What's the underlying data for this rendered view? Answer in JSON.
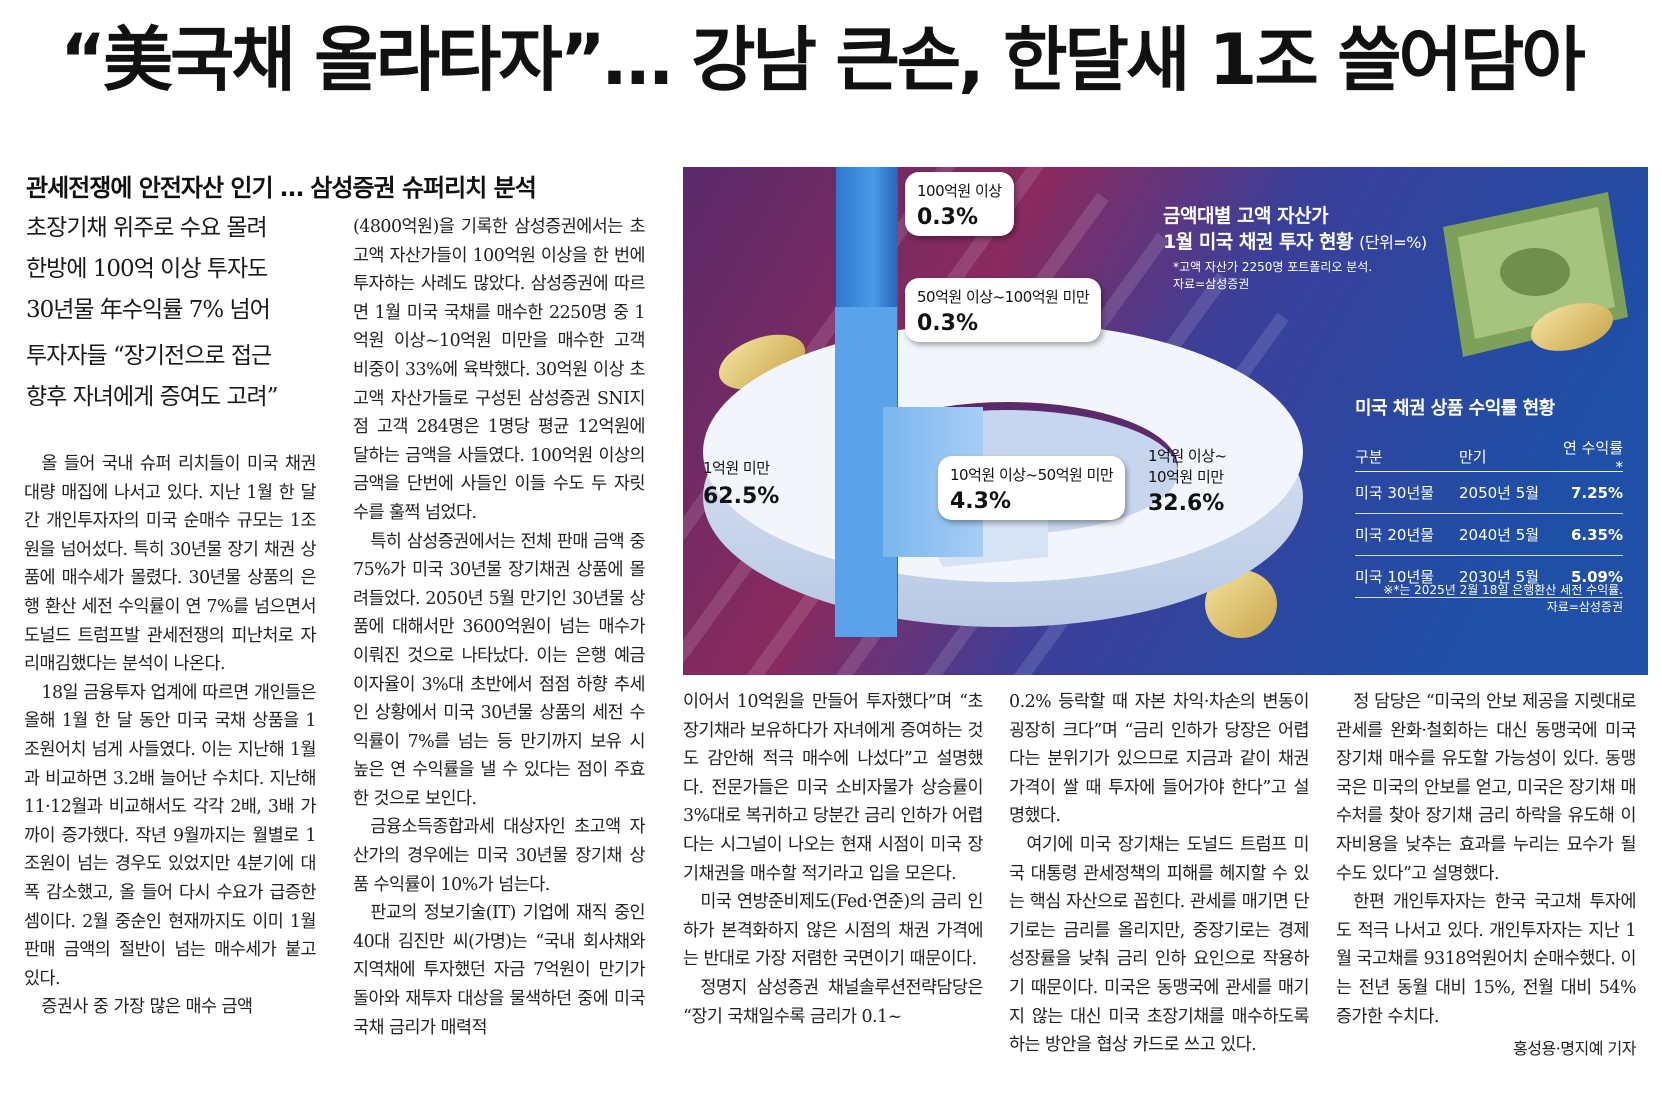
{
  "headline": "“美국채 올라타자”… 강남 큰손, 한달새 1조 쓸어담아",
  "subhead": "관세전쟁에 안전자산 인기 … 삼성증권 슈퍼리치 분석",
  "deck1": [
    "초장기채 위주로 수요 몰려",
    "한방에 100억 이상 투자도",
    "30년물 年수익률 7% 넘어"
  ],
  "deck2": [
    "투자자들 “장기전으로 접근",
    "향후 자녀에게 증여도 고려”"
  ],
  "col1": [
    "올 들어 국내 슈퍼 리치들이 미국 채권 대량 매집에 나서고 있다. 지난 1월 한 달간 개인투자자의 미국 순매수 규모는 1조원을 넘어섰다. 특히 30년물 장기 채권 상품에 매수세가 몰렸다. 30년물 상품의 은행 환산 세전 수익률이 연 7%를 넘으면서 도널드 트럼프발 관세전쟁의 피난처로 자리매김했다는 분석이 나온다.",
    "18일 금융투자 업계에 따르면 개인들은 올해 1월 한 달 동안 미국 국채 상품을 1조원어치 넘게 사들였다. 이는 지난해 1월과 비교하면 3.2배 늘어난 수치다. 지난해 11·12월과 비교해서도 각각 2배, 3배 가까이 증가했다. 작년 9월까지는 월별로 1조원이 넘는 경우도 있었지만 4분기에 대폭 감소했고, 올 들어 다시 수요가 급증한 셈이다. 2월 중순인 현재까지도 이미 1월 판매 금액의 절반이 넘는 매수세가 붙고 있다.",
    "증권사 중 가장 많은 매수 금액"
  ],
  "col2": [
    "(4800억원)을 기록한 삼성증권에서는 초고액 자산가들이 100억원 이상을 한 번에 투자하는 사례도 많았다. 삼성증권에 따르면 1월 미국 국채를 매수한 2250명 중 1억원 이상~10억원 미만을 매수한 고객 비중이 33%에 육박했다. 30억원 이상 초고액 자산가들로 구성된 삼성증권 SNI지점 고객 284명은 1명당 평균 12억원에 달하는 금액을 사들였다. 100억원 이상의 금액을 단번에 사들인 이들 수도 두 자릿수를 훌쩍 넘었다.",
    "특히 삼성증권에서는 전체 판매 금액 중 75%가 미국 30년물 장기채권 상품에 몰려들었다. 2050년 5월 만기인 30년물 상품에 대해서만 3600억원이 넘는 매수가 이뤄진 것으로 나타났다. 이는 은행 예금 이자율이 3%대 초반에서 점점 하향 추세인 상황에서 미국 30년물 상품의 세전 수익률이 7%를 넘는 등 만기까지 보유 시 높은 연 수익률을 낼 수 있다는 점이 주효한 것으로 보인다.",
    "금융소득종합과세 대상자인 초고액 자산가의 경우에는 미국 30년물 장기채 상품 수익률이 10%가 넘는다.",
    "판교의 정보기술(IT) 기업에 재직 중인 40대 김진만 씨(가명)는 “국내 회사채와 지역채에 투자했던 자금 7억원이 만기가 돌아와 재투자 대상을 물색하던 중에 미국 국채 금리가 매력적"
  ],
  "col3": [
    "이어서 10억원을 만들어 투자했다”며 “초장기채라 보유하다가 자녀에게 증여하는 것도 감안해 적극 매수에 나섰다”고 설명했다. 전문가들은 미국 소비자물가 상승률이 3%대로 복귀하고 당분간 금리 인하가 어렵다는 시그널이 나오는 현재 시점이 미국 장기채권을 매수할 적기라고 입을 모은다.",
    "미국 연방준비제도(Fed·연준)의 금리 인하가 본격화하지 않은 시점의 채권 가격에는 반대로 가장 저렴한 국면이기 때문이다.",
    "정명지 삼성증권 채널솔루션전략담당은 “장기 국채일수록 금리가 0.1~"
  ],
  "col4": [
    "0.2% 등락할 때 자본 차익·차손의 변동이 굉장히 크다”며 “금리 인하가 당장은 어렵다는 분위기가 있으므로 지금과 같이 채권 가격이 쌀 때 투자에 들어가야 한다”고 설명했다.",
    "여기에 미국 장기채는 도널드 트럼프 미국 대통령 관세정책의 피해를 헤지할 수 있는 핵심 자산으로 꼽힌다. 관세를 매기면 단기로는 금리를 올리지만, 중장기로는 경제성장률을 낮춰 금리 인하 요인으로 작용하기 때문이다. 미국은 동맹국에 관세를 매기지 않는 대신 미국 초장기채를 매수하도록 하는 방안을 협상 카드로 쓰고 있다."
  ],
  "col5": [
    "정 담당은 “미국의 안보 제공을 지렛대로 관세를 완화·철회하는 대신 동맹국에 미국 장기채 매수를 유도할 가능성이 있다. 동맹국은 미국의 안보를 얻고, 미국은 장기채 매수처를 찾아 장기채 금리 하락을 유도해 이자비용을 낮추는 효과를 누리는 묘수가 될 수도 있다”고 설명했다.",
    "한편 개인투자자는 한국 국고채 투자에도 적극 나서고 있다. 개인투자자는 지난 1월 국고채를 9318억원어치 순매수했다. 이는 전년 동월 대비 15%, 전월 대비 54% 증가한 수치다."
  ],
  "byline": "홍성용·명지예 기자",
  "infographic": {
    "title_line1": "금액대별 고액 자산가",
    "title_line2": "1월 미국 채권 투자 현황",
    "unit": "(단위=%)",
    "note_line1": "*고액 자산가 2250명 포트폴리오 분석.",
    "note_line2": "자료=삼성증권",
    "bubbles": [
      {
        "label": "100억원 이상",
        "value": "0.3%"
      },
      {
        "label": "50억원 이상~100억원 미만",
        "value": "0.3%"
      },
      {
        "label": "10억원 이상~50억원 미만",
        "value": "4.3%"
      },
      {
        "label1": "1억원 이상~",
        "label2": "10억원 미만",
        "value": "32.6%"
      },
      {
        "label": "1억원 미만",
        "value": "62.5%"
      }
    ],
    "yield_title": "미국 채권 상품 수익률 현황",
    "yield_headers": [
      "구분",
      "만기",
      "연 수익률*"
    ],
    "yield_rows": [
      [
        "미국 30년물",
        "2050년 5월",
        "7.25%"
      ],
      [
        "미국 20년물",
        "2040년 5월",
        "6.35%"
      ],
      [
        "미국 10년물",
        "2030년 5월",
        "5.09%"
      ]
    ],
    "yield_note1": "※*는 2025년 2월 18일 은행환산 세전 수익률.",
    "yield_note2": "자료=삼성증권",
    "colors": {
      "bg_left": "#6a2f6e",
      "bg_right": "#1f4fa6",
      "ring": "#eef3fb",
      "bar": "#3d8ce0"
    }
  }
}
